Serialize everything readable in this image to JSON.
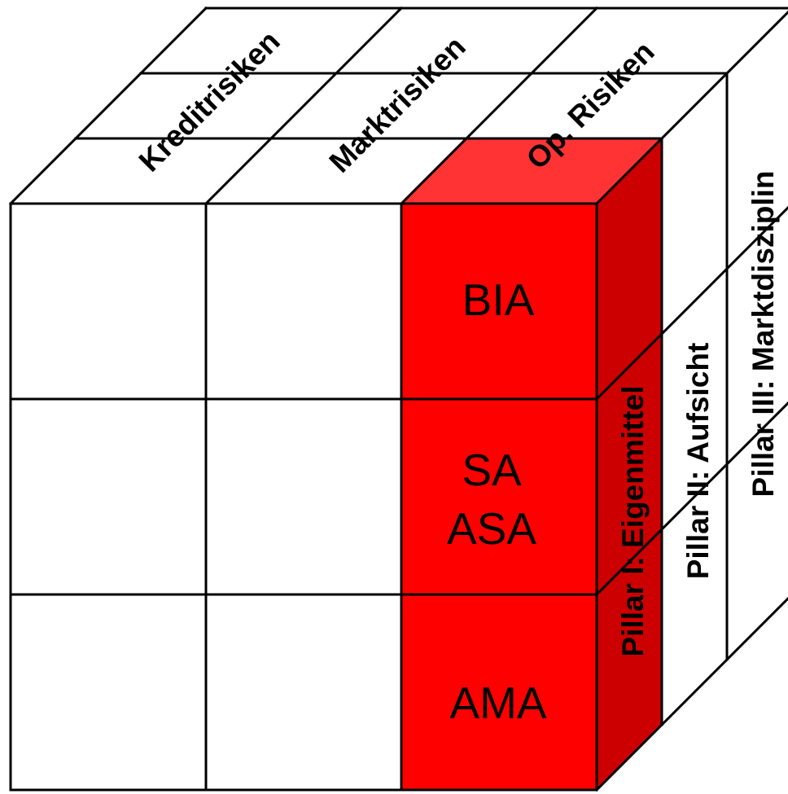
{
  "colors": {
    "front_red": "#ff0000",
    "top_red": "#ff3333",
    "side_red": "#cc0000",
    "line": "#000000",
    "background": "#ffffff"
  },
  "top_labels": [
    "Kreditrisiken",
    "Marktrisiken",
    "Op. Risiken"
  ],
  "cells": {
    "bia": "BIA",
    "sa": "SA",
    "asa": "ASA",
    "ama": "AMA"
  },
  "pillars": [
    "Pillar I: Eigenmittel",
    "Pillar II: Aufsicht",
    "Pillar III:  Marktdisziplin"
  ]
}
